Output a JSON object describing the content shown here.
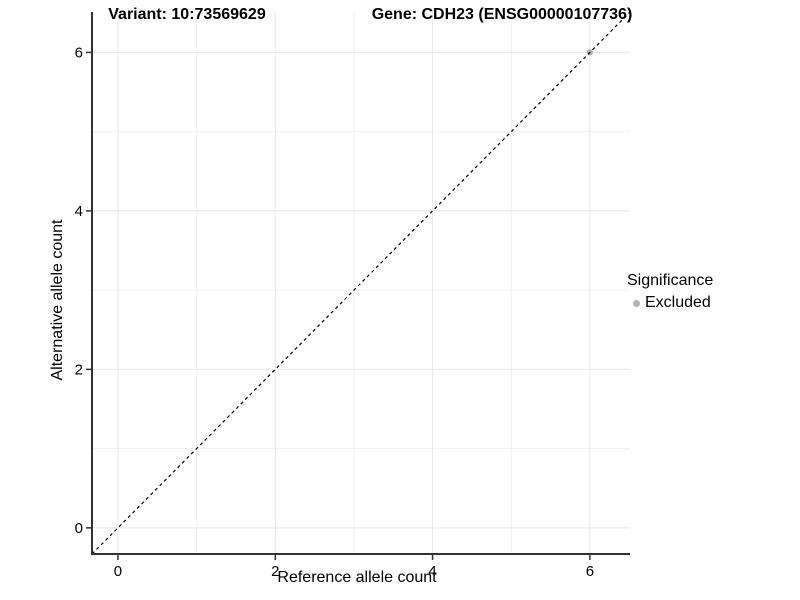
{
  "titles": {
    "variant": "Variant: 10:73569629",
    "gene": "Gene: CDH23 (ENSG00000107736)"
  },
  "axes": {
    "x": {
      "title": "Reference allele count"
    },
    "y": {
      "title": "Alternative allele count"
    }
  },
  "legend": {
    "title": "Significance",
    "items": [
      {
        "label": "Excluded",
        "color": "#B3B3B3"
      }
    ]
  },
  "chart_data": {
    "type": "scatter",
    "title": "Variant: 10:73569629 | Gene: CDH23 (ENSG00000107736)",
    "xlabel": "Reference allele count",
    "ylabel": "Alternative allele count",
    "xlim": [
      -0.33,
      6.51
    ],
    "ylim": [
      -0.33,
      6.51
    ],
    "x_major_ticks": [
      0,
      2,
      4,
      6
    ],
    "x_minor_ticks": [
      1,
      3,
      5
    ],
    "y_major_ticks": [
      0,
      2,
      4,
      6
    ],
    "y_minor_ticks": [
      1,
      3,
      5
    ],
    "grid": "major+minor",
    "legend_position": "right",
    "series": [
      {
        "name": "Excluded",
        "color": "#B3B3B3",
        "marker": "circle",
        "points": [
          [
            6,
            6
          ]
        ]
      }
    ],
    "reference_line": {
      "kind": "identity y=x",
      "style": "dashed",
      "color": "#000000",
      "from": [
        -0.33,
        -0.33
      ],
      "to": [
        6.51,
        6.51
      ]
    },
    "style": {
      "background": "#FFFFFF",
      "grid_major": "#E8E8E8",
      "grid_minor": "#F0F0F0",
      "axis_line": "#333333",
      "point_radius": 3.2
    }
  }
}
